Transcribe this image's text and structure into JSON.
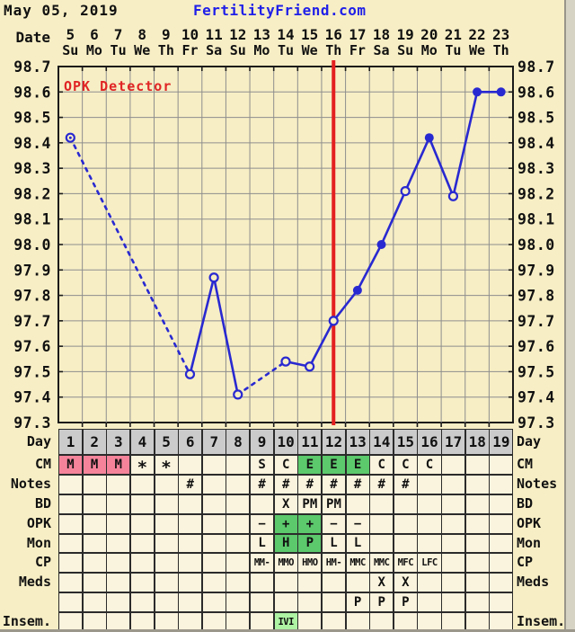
{
  "page": {
    "title_date": "May 05, 2019",
    "brand": "FertilityFriend.com"
  },
  "colors": {
    "page_bg": "#f7eec5",
    "cell_bg": "#faf3dd",
    "day_row_bg": "#cbcbcb",
    "grid": "#8e8e8e",
    "border": "#2b2b2b",
    "pink": "#f5849b",
    "green": "#5cc96c",
    "ltgreen": "#aef2a4",
    "line_blue": "#2929d1",
    "ovulation_red": "#e31f1f",
    "annotation_red": "#e02525",
    "brand_blue": "#1f1fe8",
    "text": "#111111"
  },
  "chart_data": {
    "type": "line",
    "title": "Basal body temperature chart",
    "annotation": "OPK Detector",
    "x_axis_label": "Date",
    "dates": [
      "5",
      "6",
      "7",
      "8",
      "9",
      "10",
      "11",
      "12",
      "13",
      "14",
      "15",
      "16",
      "17",
      "18",
      "19",
      "20",
      "21",
      "22",
      "23"
    ],
    "weekdays": [
      "Su",
      "Mo",
      "Tu",
      "We",
      "Th",
      "Fr",
      "Sa",
      "Su",
      "Mo",
      "Tu",
      "We",
      "Th",
      "Fr",
      "Sa",
      "Su",
      "Mo",
      "Tu",
      "We",
      "Th"
    ],
    "cycle_days": [
      "1",
      "2",
      "3",
      "4",
      "5",
      "6",
      "7",
      "8",
      "9",
      "10",
      "11",
      "12",
      "13",
      "14",
      "15",
      "16",
      "17",
      "18",
      "19"
    ],
    "y_ticks": [
      "98.7",
      "98.6",
      "98.5",
      "98.4",
      "98.3",
      "98.2",
      "98.1",
      "98.0",
      "97.9",
      "97.8",
      "97.7",
      "97.6",
      "97.5",
      "97.4",
      "97.3"
    ],
    "ylim": [
      97.3,
      98.7
    ],
    "temps": [
      98.42,
      null,
      null,
      null,
      null,
      97.49,
      97.87,
      97.41,
      null,
      97.54,
      97.52,
      97.7,
      97.82,
      98.0,
      98.21,
      98.42,
      98.19,
      98.6,
      98.6
    ],
    "point_style": [
      "open-dot",
      null,
      null,
      null,
      null,
      "open",
      "open",
      "open",
      null,
      "open",
      "open",
      "open",
      "filled",
      "filled",
      "open",
      "filled",
      "open",
      "filled",
      "filled"
    ],
    "missing_gap_style": "dashed",
    "ovulation_line_day": 12,
    "grid_on": true
  },
  "table": {
    "rows": [
      {
        "label": "Day",
        "kind": "day",
        "cells": [
          "1",
          "2",
          "3",
          "4",
          "5",
          "6",
          "7",
          "8",
          "9",
          "10",
          "11",
          "12",
          "13",
          "14",
          "15",
          "16",
          "17",
          "18",
          "19"
        ]
      },
      {
        "label": "CM",
        "cells": [
          {
            "t": "M",
            "bg": "pink"
          },
          {
            "t": "M",
            "bg": "pink"
          },
          {
            "t": "M",
            "bg": "pink"
          },
          "*",
          "*",
          null,
          null,
          null,
          "S",
          "C",
          {
            "t": "E",
            "bg": "green"
          },
          {
            "t": "E",
            "bg": "green"
          },
          {
            "t": "E",
            "bg": "green"
          },
          "C",
          "C",
          "C",
          null,
          null,
          null
        ]
      },
      {
        "label": "Notes",
        "cells": [
          null,
          null,
          null,
          null,
          null,
          "#",
          null,
          null,
          "#",
          "#",
          "#",
          "#",
          "#",
          "#",
          "#",
          null,
          null,
          null,
          null
        ]
      },
      {
        "label": "BD",
        "cells": [
          null,
          null,
          null,
          null,
          null,
          null,
          null,
          null,
          null,
          "X",
          "PM",
          "PM",
          null,
          null,
          null,
          null,
          null,
          null,
          null
        ]
      },
      {
        "label": "OPK",
        "cells": [
          null,
          null,
          null,
          null,
          null,
          null,
          null,
          null,
          "−",
          {
            "t": "+",
            "bg": "green"
          },
          {
            "t": "+",
            "bg": "green"
          },
          "−",
          "−",
          null,
          null,
          null,
          null,
          null,
          null
        ]
      },
      {
        "label": "Mon",
        "cells": [
          null,
          null,
          null,
          null,
          null,
          null,
          null,
          null,
          "L",
          {
            "t": "H",
            "bg": "green"
          },
          {
            "t": "P",
            "bg": "green"
          },
          "L",
          "L",
          null,
          null,
          null,
          null,
          null,
          null
        ]
      },
      {
        "label": "CP",
        "small": true,
        "cells": [
          null,
          null,
          null,
          null,
          null,
          null,
          null,
          null,
          "MM-",
          "MMO",
          "HMO",
          "HM-",
          "MMC",
          "MMC",
          "MFC",
          "LFC",
          null,
          null,
          null
        ]
      },
      {
        "label": "Meds",
        "cells": [
          null,
          null,
          null,
          null,
          null,
          null,
          null,
          null,
          null,
          null,
          null,
          null,
          null,
          "X",
          "X",
          null,
          null,
          null,
          null
        ]
      },
      {
        "label": "",
        "cells": [
          null,
          null,
          null,
          null,
          null,
          null,
          null,
          null,
          null,
          null,
          null,
          null,
          "P",
          "P",
          "P",
          null,
          null,
          null,
          null
        ]
      },
      {
        "label": "Insem.",
        "cells": [
          null,
          null,
          null,
          null,
          null,
          null,
          null,
          null,
          null,
          {
            "t": "IVI",
            "bg": "ltgreen",
            "small": true
          },
          null,
          null,
          null,
          null,
          null,
          null,
          null,
          null,
          null
        ]
      }
    ]
  }
}
